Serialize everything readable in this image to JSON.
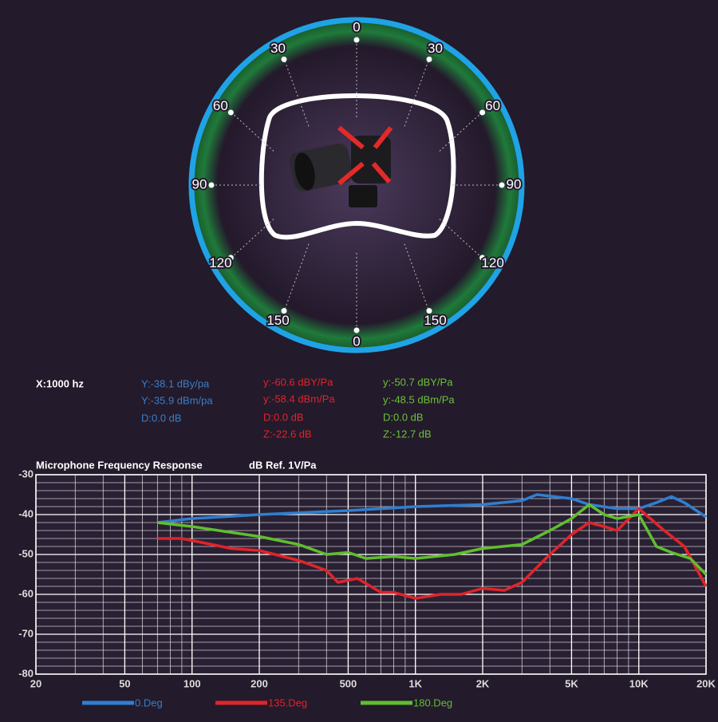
{
  "polar_diagram": {
    "angle_labels": [
      "0",
      "30",
      "60",
      "90",
      "120",
      "150",
      "0",
      "150",
      "120",
      "90",
      "60",
      "30"
    ]
  },
  "readout": {
    "x": "X:1000 hz",
    "blue": [
      "Y:-38.1 dBy/pa",
      "Y:-35.9 dBm/pa",
      "D:0.0 dB"
    ],
    "red": [
      "y:-60.6 dBY/Pa",
      "y:-58.4 dBm/Pa",
      "D:0.0 dB",
      "Z:-22.6 dB"
    ],
    "green": [
      "y:-50.7 dBY/Pa",
      "y:-48.5 dBm/Pa",
      "D:0.0 dB",
      "Z:-12.7 dB"
    ]
  },
  "chart_data": {
    "type": "line",
    "title": "Microphone Frequency Response",
    "y_label": "dB  Ref. 1V/Pa",
    "x_scale": "log",
    "grid": true,
    "xlim": [
      20,
      20000
    ],
    "xticks": [
      20,
      50,
      100,
      200,
      500,
      {
        "value": 1000,
        "label": "1K"
      },
      {
        "value": 2000,
        "label": "2K"
      },
      {
        "value": 5000,
        "label": "5K"
      },
      {
        "value": 10000,
        "label": "10K"
      },
      {
        "value": 20000,
        "label": "20K"
      }
    ],
    "ylim": [
      -80,
      -30
    ],
    "yticks": [
      -30,
      -40,
      -50,
      -60,
      -70,
      -80
    ],
    "series": [
      {
        "name": "0.Deg",
        "color": "#2f7fd0",
        "x": [
          70,
          100,
          200,
          500,
          1000,
          2000,
          3000,
          3500,
          5000,
          6000,
          8000,
          10000,
          12000,
          14000,
          16000,
          20000
        ],
        "values": [
          -42,
          -41,
          -40,
          -39,
          -38,
          -37.5,
          -36.5,
          -35,
          -36,
          -37.5,
          -38.5,
          -38.5,
          -37,
          -35.5,
          -37,
          -40.6
        ]
      },
      {
        "name": "135.Deg",
        "color": "#e0242a",
        "x": [
          70,
          90,
          100,
          150,
          200,
          300,
          400,
          450,
          550,
          700,
          800,
          1000,
          1300,
          1600,
          2000,
          2500,
          3000,
          4000,
          5000,
          6000,
          7000,
          8000,
          10000,
          13000,
          16000,
          20000
        ],
        "values": [
          -46,
          -46,
          -46.5,
          -48.5,
          -49,
          -51.5,
          -54,
          -57,
          -56,
          -59.5,
          -59.5,
          -61,
          -60,
          -60,
          -58.5,
          -59,
          -57,
          -50,
          -45,
          -42,
          -43,
          -44,
          -38.5,
          -44,
          -48,
          -58
        ]
      },
      {
        "name": "180.Deg",
        "color": "#5fbf2e",
        "x": [
          70,
          100,
          200,
          300,
          400,
          500,
          600,
          800,
          1000,
          1500,
          2000,
          3000,
          4000,
          5000,
          6000,
          7000,
          8000,
          10000,
          12000,
          14000,
          17000,
          20000
        ],
        "values": [
          -42,
          -43,
          -45.5,
          -47.5,
          -50,
          -49.5,
          -51,
          -50.5,
          -51,
          -50,
          -48.5,
          -47.5,
          -44,
          -41,
          -37.5,
          -40,
          -41,
          -40,
          -48,
          -49.5,
          -51,
          -55
        ]
      }
    ]
  }
}
